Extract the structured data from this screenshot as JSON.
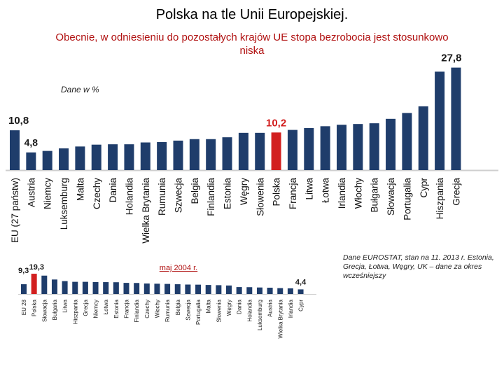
{
  "title": "Polska na tle Unii Europejskiej.",
  "subtitle": "Obecnie, w odniesieniu do pozostałych krajów UE  stopa bezrobocia jest stosunkowo niska",
  "note": "Dane EUROSTAT, stan na 11. 2013 r. Estonia, Grecja, Łotwa, Węgry, UK – dane za okres wcześniejszy",
  "colors": {
    "bar": "#1f3d6b",
    "highlight": "#d21f1f",
    "callout_old": "#b01010",
    "text": "#000000"
  },
  "chart_data": [
    {
      "type": "bar",
      "title": "Dane w %",
      "categories": [
        "EU (27 państw)",
        "Austria",
        "Niemcy",
        "Luksemburg",
        "Malta",
        "Czechy",
        "Dania",
        "Holandia",
        "Wielka Brytania",
        "Rumunia",
        "Szwecja",
        "Belgia",
        "Finlandia",
        "Estonia",
        "Węgry",
        "Słowenia",
        "Polska",
        "Francja",
        "Litwa",
        "Łotwa",
        "Irlandia",
        "Włochy",
        "Bułgaria",
        "Słowacja",
        "Portugalia",
        "Cypr",
        "Hiszpania",
        "Grecja"
      ],
      "values": [
        10.8,
        4.8,
        5.2,
        5.9,
        6.4,
        6.9,
        7.0,
        7.0,
        7.5,
        7.6,
        8.0,
        8.4,
        8.4,
        8.9,
        10.1,
        10.1,
        10.2,
        10.9,
        11.4,
        11.9,
        12.3,
        12.5,
        12.7,
        13.9,
        15.5,
        17.3,
        26.7,
        27.8
      ],
      "highlight": "Polska",
      "data_labels": {
        "EU (27 państw)": "10,8",
        "Austria": "4,8",
        "Polska": "10,2",
        "Grecja": "27,8"
      },
      "ylim": [
        0,
        30
      ],
      "xlabel": "",
      "ylabel": ""
    },
    {
      "type": "bar",
      "title": "maj 2004 r.",
      "categories": [
        "EU 28",
        "Polska",
        "Słowacja",
        "Bułgaria",
        "Litwa",
        "Hiszpania",
        "Grecja",
        "Niemcy",
        "Łotwa",
        "Estonia",
        "Francja",
        "Finlandia",
        "Czechy",
        "Włochy",
        "Rumunia",
        "Belgia",
        "Szwecja",
        "Portugalia",
        "Malta",
        "Słowenia",
        "Węgry",
        "Dania",
        "Holandia",
        "Luksemburg",
        "Austria",
        "Wielka Brytania",
        "Irlandia",
        "Cypr"
      ],
      "values": [
        9.3,
        19.3,
        17.5,
        13.8,
        12.3,
        11.6,
        11.6,
        11.4,
        11.3,
        11.2,
        10.6,
        10.5,
        10.0,
        9.8,
        9.6,
        9.3,
        9.0,
        8.9,
        8.6,
        8.4,
        8.1,
        6.6,
        6.5,
        6.2,
        6.0,
        5.6,
        5.4,
        4.4
      ],
      "highlight": "Polska",
      "data_labels": {
        "EU 28": "9,3",
        "Polska": "19,3",
        "Cypr": "4,4"
      },
      "ylim": [
        0,
        20
      ],
      "xlabel": "",
      "ylabel": ""
    }
  ]
}
